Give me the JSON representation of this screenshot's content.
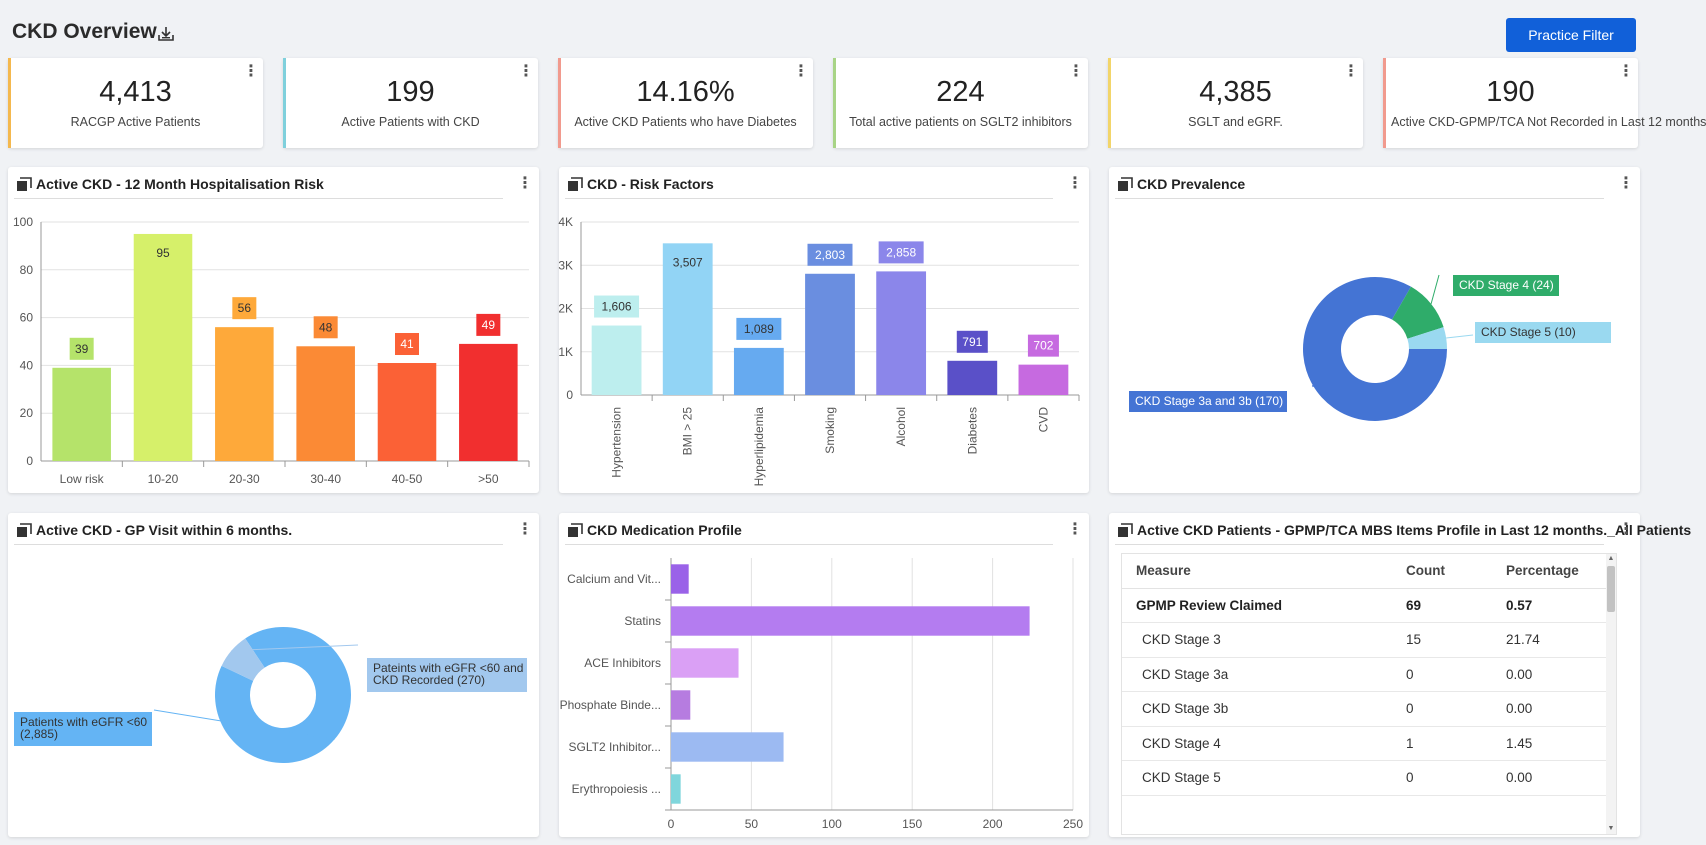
{
  "header": {
    "title": "CKD Overview",
    "download_icon": "download-icon",
    "filter_label": "Practice Filter"
  },
  "kpis": [
    {
      "value": "4,413",
      "label": "RACGP Active Patients",
      "color": "#f4b84e"
    },
    {
      "value": "199",
      "label": "Active Patients with CKD",
      "color": "#7fd0dc"
    },
    {
      "value": "14.16%",
      "label": "Active CKD Patients who have Diabetes",
      "color": "#f19a8e"
    },
    {
      "value": "224",
      "label": "Total active patients on SGLT2 inhibitors",
      "color": "#a8d486"
    },
    {
      "value": "4,385",
      "label": "SGLT and eGRF.",
      "color": "#f2d56a"
    },
    {
      "value": "190",
      "label": "Active CKD-GPMP/TCA Not Recorded in Last 12 months",
      "color": "#f19a8e"
    }
  ],
  "panels": {
    "hosp_risk": {
      "title": "Active CKD - 12 Month Hospitalisation Risk"
    },
    "risk_factors": {
      "title": "CKD - Risk Factors"
    },
    "prevalence": {
      "title": "CKD Prevalence"
    },
    "gp_visit": {
      "title": "Active CKD - GP Visit within 6 months."
    },
    "medication": {
      "title": "CKD Medication Profile"
    },
    "mbs": {
      "title": "Active CKD Patients - GPMP/TCA MBS Items Profile in Last 12 months._All Patients"
    }
  },
  "chart_data": [
    {
      "type": "bar",
      "title": "Active CKD - 12 Month Hospitalisation Risk",
      "categories": [
        "Low risk",
        "10-20",
        "20-30",
        "30-40",
        "40-50",
        ">50"
      ],
      "values": [
        39,
        95,
        56,
        48,
        41,
        49
      ],
      "colors": [
        "#b5e36a",
        "#d6f06a",
        "#fea93a",
        "#fb8a35",
        "#fb6136",
        "#f12f2f"
      ],
      "ylim": [
        0,
        100
      ],
      "yticks": [
        "0",
        "20",
        "40",
        "60",
        "80",
        "100"
      ],
      "grid": true
    },
    {
      "type": "bar",
      "title": "CKD - Risk Factors",
      "categories": [
        "Hypertension",
        "BMI > 25",
        "Hyperlipidemia",
        "Smoking",
        "Alcohol",
        "Diabetes",
        "CVD"
      ],
      "values": [
        1606,
        3507,
        1089,
        2803,
        2858,
        791,
        702
      ],
      "value_labels": [
        "1,606",
        "3,507",
        "1,089",
        "2,803",
        "2,858",
        "791",
        "702"
      ],
      "colors": [
        "#bdeeee",
        "#92d4f5",
        "#66aaf0",
        "#6a8ee0",
        "#8b86ea",
        "#5a50c8",
        "#c66ae0"
      ],
      "ylim": [
        0,
        4000
      ],
      "yticks": [
        "0",
        "1K",
        "2K",
        "3K",
        "4K"
      ],
      "grid": true
    },
    {
      "type": "pie",
      "title": "CKD Prevalence",
      "labels": [
        "CKD Stage 3a and 3b (170)",
        "CKD Stage 4 (24)",
        "CKD Stage 5 (10)"
      ],
      "values": [
        170,
        24,
        10
      ],
      "colors": [
        "#4474d4",
        "#2fac6a",
        "#9ad9f0"
      ]
    },
    {
      "type": "pie",
      "title": "Active CKD - GP Visit within 6 months.",
      "labels": [
        "Patients with eGFR <60 (2,885)",
        "Pateints with eGFR <60 and CKD Recorded (270)"
      ],
      "values": [
        2885,
        270
      ],
      "colors": [
        "#64b4f4",
        "#a2c8ee"
      ]
    },
    {
      "type": "bar",
      "orientation": "horizontal",
      "title": "CKD Medication Profile",
      "categories": [
        "Calcium and Vit...",
        "Statins",
        "ACE Inhibitors",
        "Phosphate Binde...",
        "SGLT2 Inhibitor...",
        "Erythropoiesis ..."
      ],
      "values": [
        11,
        223,
        42,
        12,
        70,
        6
      ],
      "colors": [
        "#9a62e8",
        "#b47cf0",
        "#daa0f5",
        "#b67ce0",
        "#9cbaf2",
        "#80d6dc"
      ],
      "xlim": [
        0,
        250
      ],
      "xticks": [
        "0",
        "50",
        "100",
        "150",
        "200",
        "250"
      ],
      "grid": true
    }
  ],
  "mbs_table": {
    "headers": [
      "Measure",
      "Count",
      "Percentage"
    ],
    "rows": [
      {
        "measure": "GPMP Review Claimed",
        "count": "69",
        "pct": "0.57",
        "group": true
      },
      {
        "measure": "CKD Stage 3",
        "count": "15",
        "pct": "21.74"
      },
      {
        "measure": "CKD Stage 3a",
        "count": "0",
        "pct": "0.00"
      },
      {
        "measure": "CKD Stage 3b",
        "count": "0",
        "pct": "0.00"
      },
      {
        "measure": "CKD Stage 4",
        "count": "1",
        "pct": "1.45"
      },
      {
        "measure": "CKD Stage 5",
        "count": "0",
        "pct": "0.00"
      }
    ]
  }
}
